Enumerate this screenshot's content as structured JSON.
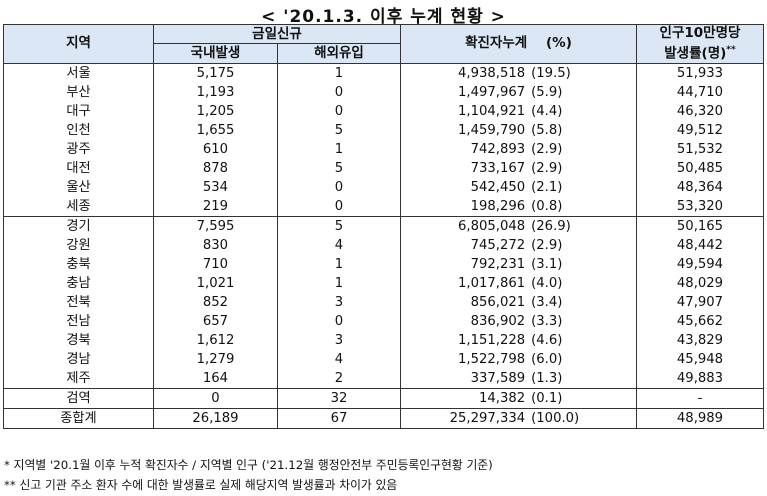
{
  "title": "< '20.1.3. 이후 누계 현황 >",
  "headers": {
    "region": "지역",
    "today_new": "금일신규",
    "domestic": "국내발생",
    "overseas": "해외유입",
    "cumulative": "확진자누계",
    "percent": "(%)",
    "per_100k_line1": "인구10만명당",
    "per_100k_line2": "발생률(명)",
    "per_100k_mark": "**"
  },
  "rows": [
    {
      "region": "서울",
      "domestic": "5,175",
      "overseas": "1",
      "cumulative": "4,938,518",
      "percent": "(19.5)",
      "rate": "51,933"
    },
    {
      "region": "부산",
      "domestic": "1,193",
      "overseas": "0",
      "cumulative": "1,497,967",
      "percent": "(5.9)",
      "rate": "44,710"
    },
    {
      "region": "대구",
      "domestic": "1,205",
      "overseas": "0",
      "cumulative": "1,104,921",
      "percent": "(4.4)",
      "rate": "46,320"
    },
    {
      "region": "인천",
      "domestic": "1,655",
      "overseas": "5",
      "cumulative": "1,459,790",
      "percent": "(5.8)",
      "rate": "49,512"
    },
    {
      "region": "광주",
      "domestic": "610",
      "overseas": "1",
      "cumulative": "742,893",
      "percent": "(2.9)",
      "rate": "51,532"
    },
    {
      "region": "대전",
      "domestic": "878",
      "overseas": "5",
      "cumulative": "733,167",
      "percent": "(2.9)",
      "rate": "50,485"
    },
    {
      "region": "울산",
      "domestic": "534",
      "overseas": "0",
      "cumulative": "542,450",
      "percent": "(2.1)",
      "rate": "48,364"
    },
    {
      "region": "세종",
      "domestic": "219",
      "overseas": "0",
      "cumulative": "198,296",
      "percent": "(0.8)",
      "rate": "53,320"
    },
    {
      "region": "경기",
      "domestic": "7,595",
      "overseas": "5",
      "cumulative": "6,805,048",
      "percent": "(26.9)",
      "rate": "50,165"
    },
    {
      "region": "강원",
      "domestic": "830",
      "overseas": "4",
      "cumulative": "745,272",
      "percent": "(2.9)",
      "rate": "48,442"
    },
    {
      "region": "충북",
      "domestic": "710",
      "overseas": "1",
      "cumulative": "792,231",
      "percent": "(3.1)",
      "rate": "49,594"
    },
    {
      "region": "충남",
      "domestic": "1,021",
      "overseas": "1",
      "cumulative": "1,017,861",
      "percent": "(4.0)",
      "rate": "48,029"
    },
    {
      "region": "전북",
      "domestic": "852",
      "overseas": "3",
      "cumulative": "856,021",
      "percent": "(3.4)",
      "rate": "47,907"
    },
    {
      "region": "전남",
      "domestic": "657",
      "overseas": "0",
      "cumulative": "836,902",
      "percent": "(3.3)",
      "rate": "45,662"
    },
    {
      "region": "경북",
      "domestic": "1,612",
      "overseas": "3",
      "cumulative": "1,151,228",
      "percent": "(4.6)",
      "rate": "43,829"
    },
    {
      "region": "경남",
      "domestic": "1,279",
      "overseas": "4",
      "cumulative": "1,522,798",
      "percent": "(6.0)",
      "rate": "45,948"
    },
    {
      "region": "제주",
      "domestic": "164",
      "overseas": "2",
      "cumulative": "337,589",
      "percent": "(1.3)",
      "rate": "49,883"
    },
    {
      "region": "검역",
      "domestic": "0",
      "overseas": "32",
      "cumulative": "14,382",
      "percent": "(0.1)",
      "rate": "-"
    }
  ],
  "total": {
    "region": "종합계",
    "domestic": "26,189",
    "overseas": "67",
    "cumulative": "25,297,334",
    "percent": "(100.0)",
    "rate": "48,989"
  },
  "notes": [
    "* 지역별 '20.1월 이후 누적 확진자수 / 지역별 인구 ('21.12월 행정안전부 주민등록인구현황 기준)",
    "** 신고 기관 주소 환자 수에 대한 발생률로 실제 해당지역 발생률과 차이가 있음"
  ],
  "colors": {
    "header_bg": "#dbe7f4",
    "border": "#333333"
  }
}
